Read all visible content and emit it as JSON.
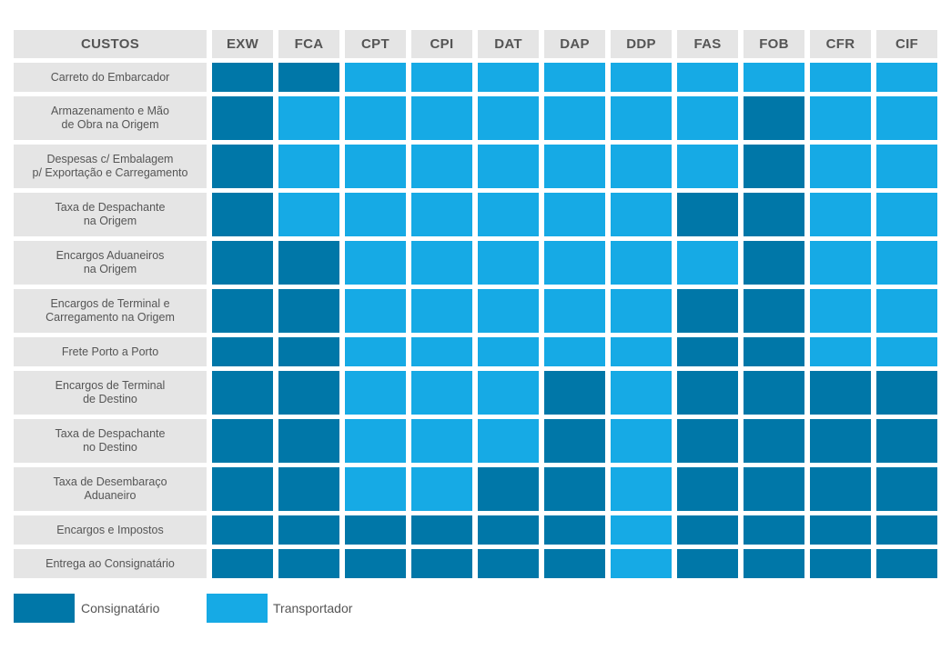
{
  "colors": {
    "consignatario": "#0077a8",
    "transportador": "#16aae5"
  },
  "header_label": "CUSTOS",
  "terms": [
    "EXW",
    "FCA",
    "CPT",
    "CPI",
    "DAT",
    "DAP",
    "DDP",
    "FAS",
    "FOB",
    "CFR",
    "CIF"
  ],
  "rows": [
    {
      "label": "Carreto do Embarcador",
      "cells": "CCTTTTTTTTT"
    },
    {
      "label": "Armazenamento e Mão\nde Obra na Origem",
      "cells": "CTTTTTTTCTT"
    },
    {
      "label": "Despesas c/ Embalagem\np/ Exportação e Carregamento",
      "cells": "CTTTTTTTCTT"
    },
    {
      "label": "Taxa de Despachante\nna Origem",
      "cells": "CTTTTTTCCTT"
    },
    {
      "label": "Encargos Aduaneiros\nna Origem",
      "cells": "CCTTTTTTCTT"
    },
    {
      "label": "Encargos de Terminal e\nCarregamento na Origem",
      "cells": "CCTTTTTCCTT"
    },
    {
      "label": "Frete Porto a Porto",
      "cells": "CCTTTTTCCTT"
    },
    {
      "label": "Encargos de Terminal\nde Destino",
      "cells": "CCTTTCTCCCC"
    },
    {
      "label": "Taxa de Despachante\nno Destino",
      "cells": "CCTTTCTCCCC"
    },
    {
      "label": "Taxa de Desembaraço\nAduaneiro",
      "cells": "CCTTCCTCCCC"
    },
    {
      "label": "Encargos e Impostos",
      "cells": "CCCCCCTCCCC"
    },
    {
      "label": "Entrega ao Consignatário",
      "cells": "CCCCCCTCCCC"
    }
  ],
  "legend": {
    "consignatario_label": "Consignatário",
    "transportador_label": "Transportador"
  }
}
